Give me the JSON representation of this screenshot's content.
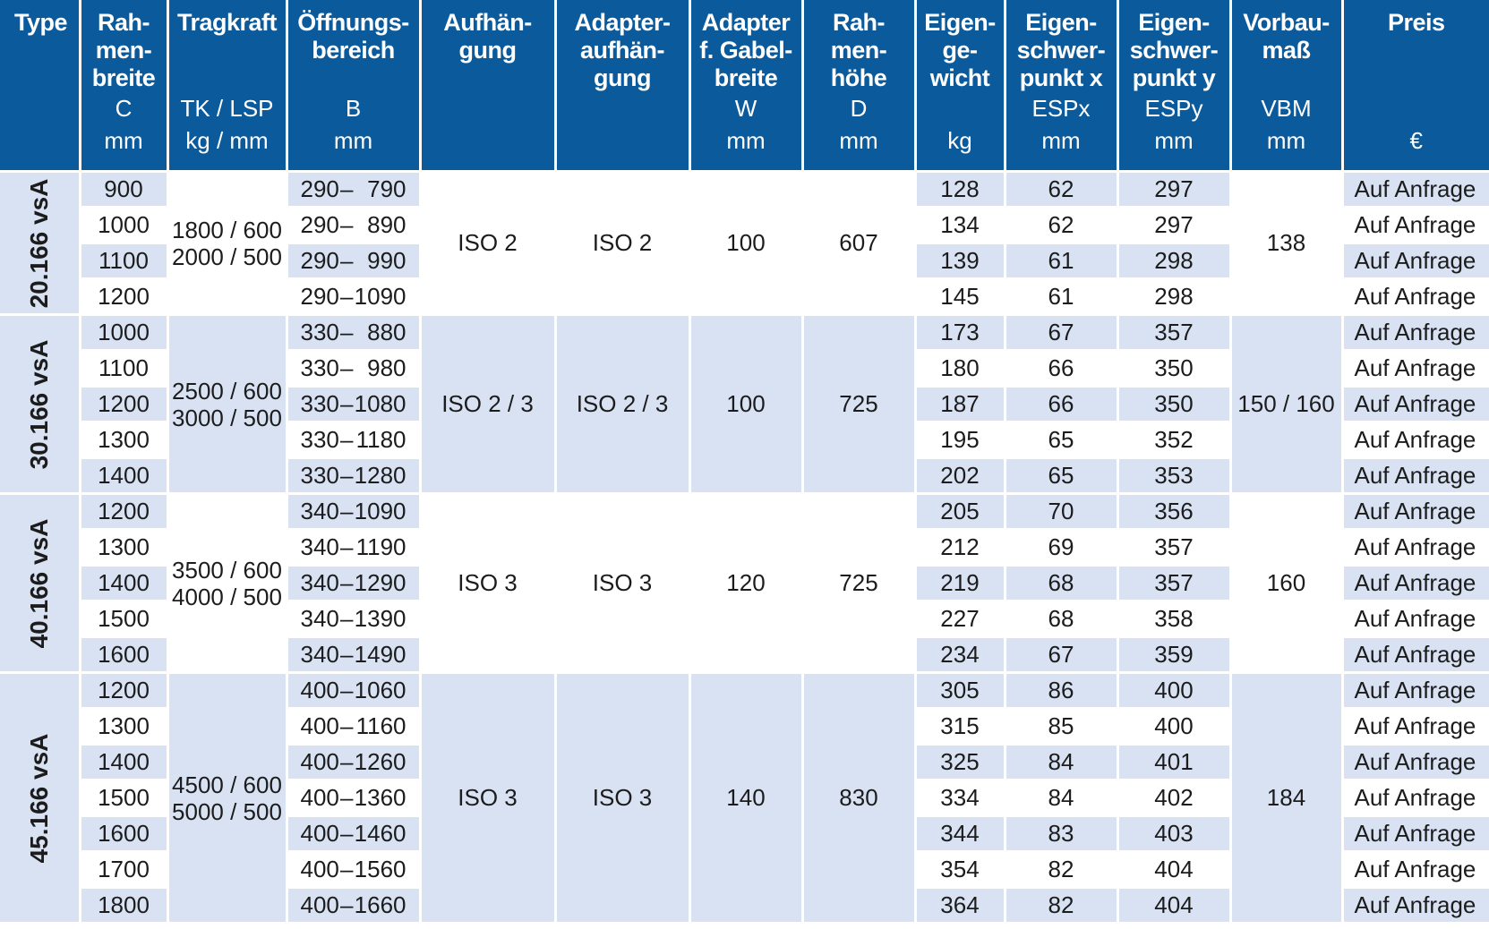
{
  "header": [
    {
      "title": "Type",
      "sym": "",
      "unit": ""
    },
    {
      "title": "Rah-\nmen-\nbreite",
      "sym": "C",
      "unit": "mm"
    },
    {
      "title": "Tragkraft",
      "sym": "TK / LSP",
      "unit": "kg / mm"
    },
    {
      "title": "Öffnungs-\nbereich",
      "sym": "B",
      "unit": "mm"
    },
    {
      "title": "Aufhän-\ngung",
      "sym": "",
      "unit": ""
    },
    {
      "title": "Adapter-\naufhän-\ngung",
      "sym": "",
      "unit": ""
    },
    {
      "title": "Adapter\nf. Gabel-\nbreite",
      "sym": "W",
      "unit": "mm"
    },
    {
      "title": "Rah-\nmen-\nhöhe",
      "sym": "D",
      "unit": "mm"
    },
    {
      "title": "Eigen-\nge-\nwicht",
      "sym": "",
      "unit": "kg"
    },
    {
      "title": "Eigen-\nschwer-\npunkt x",
      "sym": "ESPx",
      "unit": "mm"
    },
    {
      "title": "Eigen-\nschwer-\npunkt y",
      "sym": "ESPy",
      "unit": "mm"
    },
    {
      "title": "Vorbau-\nmaß",
      "sym": "VBM",
      "unit": "mm"
    },
    {
      "title": "Preis",
      "sym": "",
      "unit": "€"
    }
  ],
  "groups": [
    {
      "type": "20.166 vsA",
      "tragkraft": [
        "1800 / 600",
        "2000 / 500"
      ],
      "aufhaengung": "ISO 2",
      "adapter": "ISO 2",
      "gabelbreite": "100",
      "hoehe": "607",
      "vorbau": "138",
      "rows": [
        {
          "c": "900",
          "b_lo": "290",
          "b_hi": "790",
          "kg": "128",
          "espx": "62",
          "espy": "297",
          "preis": "Auf Anfrage"
        },
        {
          "c": "1000",
          "b_lo": "290",
          "b_hi": "890",
          "kg": "134",
          "espx": "62",
          "espy": "297",
          "preis": "Auf Anfrage"
        },
        {
          "c": "1100",
          "b_lo": "290",
          "b_hi": "990",
          "kg": "139",
          "espx": "61",
          "espy": "298",
          "preis": "Auf Anfrage"
        },
        {
          "c": "1200",
          "b_lo": "290",
          "b_hi": "1090",
          "kg": "145",
          "espx": "61",
          "espy": "298",
          "preis": "Auf Anfrage"
        }
      ]
    },
    {
      "type": "30.166 vsA",
      "tragkraft": [
        "2500 / 600",
        "3000 / 500"
      ],
      "aufhaengung": "ISO 2 / 3",
      "adapter": "ISO 2 / 3",
      "gabelbreite": "100",
      "hoehe": "725",
      "vorbau": "150 / 160",
      "rows": [
        {
          "c": "1000",
          "b_lo": "330",
          "b_hi": "880",
          "kg": "173",
          "espx": "67",
          "espy": "357",
          "preis": "Auf Anfrage"
        },
        {
          "c": "1100",
          "b_lo": "330",
          "b_hi": "980",
          "kg": "180",
          "espx": "66",
          "espy": "350",
          "preis": "Auf Anfrage"
        },
        {
          "c": "1200",
          "b_lo": "330",
          "b_hi": "1080",
          "kg": "187",
          "espx": "66",
          "espy": "350",
          "preis": "Auf Anfrage"
        },
        {
          "c": "1300",
          "b_lo": "330",
          "b_hi": "1180",
          "kg": "195",
          "espx": "65",
          "espy": "352",
          "preis": "Auf Anfrage"
        },
        {
          "c": "1400",
          "b_lo": "330",
          "b_hi": "1280",
          "kg": "202",
          "espx": "65",
          "espy": "353",
          "preis": "Auf Anfrage"
        }
      ]
    },
    {
      "type": "40.166 vsA",
      "tragkraft": [
        "3500 / 600",
        "4000 / 500"
      ],
      "aufhaengung": "ISO 3",
      "adapter": "ISO 3",
      "gabelbreite": "120",
      "hoehe": "725",
      "vorbau": "160",
      "rows": [
        {
          "c": "1200",
          "b_lo": "340",
          "b_hi": "1090",
          "kg": "205",
          "espx": "70",
          "espy": "356",
          "preis": "Auf Anfrage"
        },
        {
          "c": "1300",
          "b_lo": "340",
          "b_hi": "1190",
          "kg": "212",
          "espx": "69",
          "espy": "357",
          "preis": "Auf Anfrage"
        },
        {
          "c": "1400",
          "b_lo": "340",
          "b_hi": "1290",
          "kg": "219",
          "espx": "68",
          "espy": "357",
          "preis": "Auf Anfrage"
        },
        {
          "c": "1500",
          "b_lo": "340",
          "b_hi": "1390",
          "kg": "227",
          "espx": "68",
          "espy": "358",
          "preis": "Auf Anfrage"
        },
        {
          "c": "1600",
          "b_lo": "340",
          "b_hi": "1490",
          "kg": "234",
          "espx": "67",
          "espy": "359",
          "preis": "Auf Anfrage"
        }
      ]
    },
    {
      "type": "45.166 vsA",
      "tragkraft": [
        "4500 / 600",
        "5000 / 500"
      ],
      "aufhaengung": "ISO 3",
      "adapter": "ISO 3",
      "gabelbreite": "140",
      "hoehe": "830",
      "vorbau": "184",
      "rows": [
        {
          "c": "1200",
          "b_lo": "400",
          "b_hi": "1060",
          "kg": "305",
          "espx": "86",
          "espy": "400",
          "preis": "Auf Anfrage"
        },
        {
          "c": "1300",
          "b_lo": "400",
          "b_hi": "1160",
          "kg": "315",
          "espx": "85",
          "espy": "400",
          "preis": "Auf Anfrage"
        },
        {
          "c": "1400",
          "b_lo": "400",
          "b_hi": "1260",
          "kg": "325",
          "espx": "84",
          "espy": "401",
          "preis": "Auf Anfrage"
        },
        {
          "c": "1500",
          "b_lo": "400",
          "b_hi": "1360",
          "kg": "334",
          "espx": "84",
          "espy": "402",
          "preis": "Auf Anfrage"
        },
        {
          "c": "1600",
          "b_lo": "400",
          "b_hi": "1460",
          "kg": "344",
          "espx": "83",
          "espy": "403",
          "preis": "Auf Anfrage"
        },
        {
          "c": "1700",
          "b_lo": "400",
          "b_hi": "1560",
          "kg": "354",
          "espx": "82",
          "espy": "404",
          "preis": "Auf Anfrage"
        },
        {
          "c": "1800",
          "b_lo": "400",
          "b_hi": "1660",
          "kg": "364",
          "espx": "82",
          "espy": "404",
          "preis": "Auf Anfrage"
        }
      ]
    }
  ]
}
